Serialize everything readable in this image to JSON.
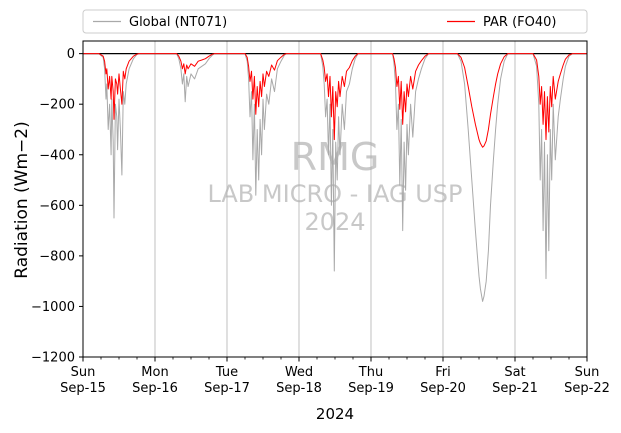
{
  "chart_data": {
    "type": "line",
    "xlabel": "2024",
    "ylabel": "Radiation (Wm−2)",
    "ylim": [
      -1200,
      50
    ],
    "yticks": [
      0,
      -200,
      -400,
      -600,
      -800,
      -1000,
      -1200
    ],
    "xlim": [
      0,
      7
    ],
    "x_unit": "days since Sun Sep-15 00:00, 2024",
    "xticks": [
      {
        "day": "Sun",
        "date": "Sep-15",
        "pos": 0
      },
      {
        "day": "Mon",
        "date": "Sep-16",
        "pos": 1
      },
      {
        "day": "Tue",
        "date": "Sep-17",
        "pos": 2
      },
      {
        "day": "Wed",
        "date": "Sep-18",
        "pos": 3
      },
      {
        "day": "Thu",
        "date": "Sep-19",
        "pos": 4
      },
      {
        "day": "Fri",
        "date": "Sep-20",
        "pos": 5
      },
      {
        "day": "Sat",
        "date": "Sep-21",
        "pos": 6
      },
      {
        "day": "Sun",
        "date": "Sep-22",
        "pos": 7
      }
    ],
    "grid": "vertical",
    "zero_line": true,
    "legend_placement": "above plot",
    "watermark": [
      "RMG",
      "LAB MICRO - IAG USP",
      "2024"
    ],
    "series": [
      {
        "name": "Global (NT071)",
        "color": "#a9a9a9",
        "points": [
          [
            0,
            0
          ],
          [
            0.22,
            0
          ],
          [
            0.28,
            -15
          ],
          [
            0.3,
            -60
          ],
          [
            0.32,
            -180
          ],
          [
            0.33,
            -120
          ],
          [
            0.35,
            -300
          ],
          [
            0.37,
            -200
          ],
          [
            0.39,
            -400
          ],
          [
            0.4,
            -180
          ],
          [
            0.42,
            -350
          ],
          [
            0.43,
            -650
          ],
          [
            0.45,
            -200
          ],
          [
            0.47,
            -250
          ],
          [
            0.48,
            -380
          ],
          [
            0.5,
            -180
          ],
          [
            0.52,
            -300
          ],
          [
            0.54,
            -480
          ],
          [
            0.56,
            -150
          ],
          [
            0.58,
            -200
          ],
          [
            0.6,
            -120
          ],
          [
            0.64,
            -60
          ],
          [
            0.7,
            -20
          ],
          [
            0.75,
            -3
          ],
          [
            0.78,
            0
          ],
          [
            1.3,
            0
          ],
          [
            1.33,
            -20
          ],
          [
            1.36,
            -60
          ],
          [
            1.38,
            -120
          ],
          [
            1.4,
            -80
          ],
          [
            1.42,
            -190
          ],
          [
            1.44,
            -90
          ],
          [
            1.46,
            -130
          ],
          [
            1.5,
            -80
          ],
          [
            1.55,
            -100
          ],
          [
            1.6,
            -60
          ],
          [
            1.65,
            -50
          ],
          [
            1.7,
            -40
          ],
          [
            1.75,
            -20
          ],
          [
            1.8,
            -5
          ],
          [
            1.83,
            0
          ],
          [
            2.25,
            0
          ],
          [
            2.28,
            -30
          ],
          [
            2.3,
            -100
          ],
          [
            2.32,
            -250
          ],
          [
            2.34,
            -150
          ],
          [
            2.36,
            -420
          ],
          [
            2.38,
            -200
          ],
          [
            2.4,
            -560
          ],
          [
            2.42,
            -300
          ],
          [
            2.44,
            -500
          ],
          [
            2.46,
            -260
          ],
          [
            2.48,
            -400
          ],
          [
            2.5,
            -180
          ],
          [
            2.52,
            -300
          ],
          [
            2.55,
            -160
          ],
          [
            2.58,
            -200
          ],
          [
            2.62,
            -100
          ],
          [
            2.66,
            -150
          ],
          [
            2.7,
            -60
          ],
          [
            2.75,
            -30
          ],
          [
            2.8,
            -5
          ],
          [
            2.83,
            0
          ],
          [
            3.3,
            0
          ],
          [
            3.33,
            -50
          ],
          [
            3.35,
            -120
          ],
          [
            3.37,
            -250
          ],
          [
            3.39,
            -180
          ],
          [
            3.41,
            -400
          ],
          [
            3.43,
            -200
          ],
          [
            3.45,
            -600
          ],
          [
            3.47,
            -300
          ],
          [
            3.49,
            -860
          ],
          [
            3.51,
            -350
          ],
          [
            3.53,
            -500
          ],
          [
            3.55,
            -250
          ],
          [
            3.57,
            -400
          ],
          [
            3.6,
            -200
          ],
          [
            3.63,
            -300
          ],
          [
            3.66,
            -150
          ],
          [
            3.7,
            -120
          ],
          [
            3.74,
            -60
          ],
          [
            3.78,
            -20
          ],
          [
            3.82,
            0
          ],
          [
            4.3,
            0
          ],
          [
            4.32,
            -40
          ],
          [
            4.34,
            -120
          ],
          [
            4.36,
            -300
          ],
          [
            4.38,
            -200
          ],
          [
            4.4,
            -520
          ],
          [
            4.42,
            -260
          ],
          [
            4.44,
            -700
          ],
          [
            4.46,
            -350
          ],
          [
            4.48,
            -540
          ],
          [
            4.5,
            -280
          ],
          [
            4.52,
            -400
          ],
          [
            4.55,
            -200
          ],
          [
            4.58,
            -330
          ],
          [
            4.62,
            -150
          ],
          [
            4.66,
            -100
          ],
          [
            4.7,
            -60
          ],
          [
            4.75,
            -20
          ],
          [
            4.8,
            0
          ],
          [
            5.2,
            0
          ],
          [
            5.25,
            -30
          ],
          [
            5.3,
            -120
          ],
          [
            5.35,
            -300
          ],
          [
            5.4,
            -500
          ],
          [
            5.45,
            -700
          ],
          [
            5.5,
            -880
          ],
          [
            5.52,
            -930
          ],
          [
            5.55,
            -980
          ],
          [
            5.57,
            -960
          ],
          [
            5.6,
            -900
          ],
          [
            5.63,
            -780
          ],
          [
            5.66,
            -600
          ],
          [
            5.7,
            -420
          ],
          [
            5.73,
            -300
          ],
          [
            5.76,
            -200
          ],
          [
            5.8,
            -100
          ],
          [
            5.85,
            -30
          ],
          [
            5.9,
            0
          ],
          [
            6.25,
            0
          ],
          [
            6.3,
            -50
          ],
          [
            6.33,
            -200
          ],
          [
            6.35,
            -500
          ],
          [
            6.37,
            -300
          ],
          [
            6.39,
            -700
          ],
          [
            6.41,
            -350
          ],
          [
            6.43,
            -890
          ],
          [
            6.45,
            -400
          ],
          [
            6.47,
            -780
          ],
          [
            6.49,
            -300
          ],
          [
            6.51,
            -500
          ],
          [
            6.53,
            -200
          ],
          [
            6.56,
            -420
          ],
          [
            6.6,
            -250
          ],
          [
            6.63,
            -180
          ],
          [
            6.67,
            -100
          ],
          [
            6.7,
            -50
          ],
          [
            6.75,
            -10
          ],
          [
            6.8,
            0
          ],
          [
            7,
            0
          ]
        ]
      },
      {
        "name": "PAR (FO40)",
        "color": "#ff0000",
        "points": [
          [
            0,
            0
          ],
          [
            0.22,
            0
          ],
          [
            0.28,
            -10
          ],
          [
            0.3,
            -30
          ],
          [
            0.32,
            -80
          ],
          [
            0.33,
            -60
          ],
          [
            0.35,
            -140
          ],
          [
            0.37,
            -90
          ],
          [
            0.39,
            -180
          ],
          [
            0.4,
            -90
          ],
          [
            0.42,
            -150
          ],
          [
            0.43,
            -260
          ],
          [
            0.45,
            -100
          ],
          [
            0.47,
            -120
          ],
          [
            0.48,
            -160
          ],
          [
            0.5,
            -80
          ],
          [
            0.52,
            -140
          ],
          [
            0.54,
            -200
          ],
          [
            0.56,
            -70
          ],
          [
            0.58,
            -100
          ],
          [
            0.6,
            -60
          ],
          [
            0.64,
            -30
          ],
          [
            0.7,
            -10
          ],
          [
            0.75,
            -2
          ],
          [
            0.78,
            0
          ],
          [
            1.3,
            0
          ],
          [
            1.33,
            -10
          ],
          [
            1.36,
            -30
          ],
          [
            1.38,
            -60
          ],
          [
            1.4,
            -40
          ],
          [
            1.42,
            -80
          ],
          [
            1.44,
            -45
          ],
          [
            1.46,
            -60
          ],
          [
            1.5,
            -40
          ],
          [
            1.55,
            -50
          ],
          [
            1.6,
            -30
          ],
          [
            1.65,
            -25
          ],
          [
            1.7,
            -20
          ],
          [
            1.75,
            -10
          ],
          [
            1.8,
            -2
          ],
          [
            1.83,
            0
          ],
          [
            2.25,
            0
          ],
          [
            2.28,
            -15
          ],
          [
            2.3,
            -50
          ],
          [
            2.32,
            -110
          ],
          [
            2.34,
            -70
          ],
          [
            2.36,
            -180
          ],
          [
            2.38,
            -90
          ],
          [
            2.4,
            -240
          ],
          [
            2.42,
            -130
          ],
          [
            2.44,
            -210
          ],
          [
            2.46,
            -110
          ],
          [
            2.48,
            -170
          ],
          [
            2.5,
            -80
          ],
          [
            2.52,
            -130
          ],
          [
            2.55,
            -70
          ],
          [
            2.58,
            -90
          ],
          [
            2.62,
            -45
          ],
          [
            2.66,
            -65
          ],
          [
            2.7,
            -28
          ],
          [
            2.75,
            -14
          ],
          [
            2.8,
            -2
          ],
          [
            2.83,
            0
          ],
          [
            3.3,
            0
          ],
          [
            3.33,
            -25
          ],
          [
            3.35,
            -55
          ],
          [
            3.37,
            -110
          ],
          [
            3.39,
            -80
          ],
          [
            3.41,
            -170
          ],
          [
            3.43,
            -90
          ],
          [
            3.45,
            -250
          ],
          [
            3.47,
            -130
          ],
          [
            3.49,
            -340
          ],
          [
            3.51,
            -150
          ],
          [
            3.53,
            -210
          ],
          [
            3.55,
            -110
          ],
          [
            3.57,
            -170
          ],
          [
            3.6,
            -90
          ],
          [
            3.63,
            -130
          ],
          [
            3.66,
            -70
          ],
          [
            3.7,
            -55
          ],
          [
            3.74,
            -28
          ],
          [
            3.78,
            -10
          ],
          [
            3.82,
            0
          ],
          [
            4.3,
            0
          ],
          [
            4.32,
            -20
          ],
          [
            4.34,
            -55
          ],
          [
            4.36,
            -130
          ],
          [
            4.38,
            -90
          ],
          [
            4.4,
            -220
          ],
          [
            4.42,
            -110
          ],
          [
            4.44,
            -280
          ],
          [
            4.46,
            -150
          ],
          [
            4.48,
            -230
          ],
          [
            4.5,
            -120
          ],
          [
            4.52,
            -170
          ],
          [
            4.55,
            -90
          ],
          [
            4.58,
            -140
          ],
          [
            4.62,
            -70
          ],
          [
            4.66,
            -45
          ],
          [
            4.7,
            -28
          ],
          [
            4.75,
            -10
          ],
          [
            4.8,
            0
          ],
          [
            5.2,
            0
          ],
          [
            5.25,
            -15
          ],
          [
            5.3,
            -55
          ],
          [
            5.35,
            -130
          ],
          [
            5.4,
            -210
          ],
          [
            5.45,
            -280
          ],
          [
            5.5,
            -340
          ],
          [
            5.52,
            -355
          ],
          [
            5.55,
            -370
          ],
          [
            5.57,
            -365
          ],
          [
            5.6,
            -345
          ],
          [
            5.63,
            -300
          ],
          [
            5.66,
            -240
          ],
          [
            5.7,
            -170
          ],
          [
            5.73,
            -120
          ],
          [
            5.76,
            -80
          ],
          [
            5.8,
            -40
          ],
          [
            5.85,
            -12
          ],
          [
            5.9,
            0
          ],
          [
            6.25,
            0
          ],
          [
            6.3,
            -25
          ],
          [
            6.33,
            -90
          ],
          [
            6.35,
            -200
          ],
          [
            6.37,
            -130
          ],
          [
            6.39,
            -280
          ],
          [
            6.41,
            -150
          ],
          [
            6.43,
            -340
          ],
          [
            6.45,
            -170
          ],
          [
            6.47,
            -310
          ],
          [
            6.49,
            -130
          ],
          [
            6.51,
            -210
          ],
          [
            6.53,
            -90
          ],
          [
            6.56,
            -180
          ],
          [
            6.6,
            -110
          ],
          [
            6.63,
            -80
          ],
          [
            6.67,
            -45
          ],
          [
            6.7,
            -22
          ],
          [
            6.75,
            -5
          ],
          [
            6.8,
            0
          ],
          [
            7,
            0
          ]
        ]
      }
    ]
  }
}
